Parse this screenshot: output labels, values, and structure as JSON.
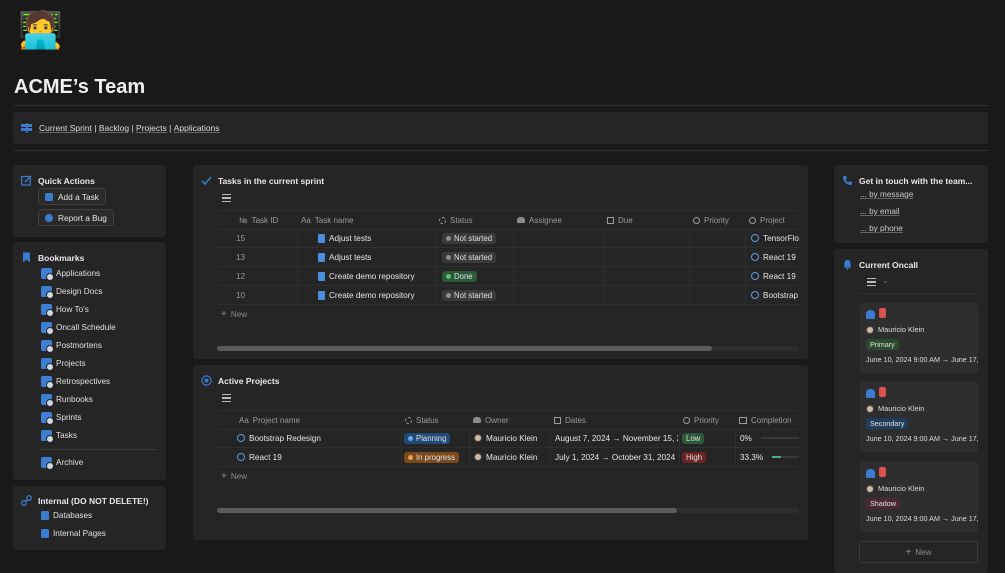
{
  "page": {
    "title": "ACME’s Team",
    "emoji": "🧑‍💻"
  },
  "nav": {
    "links": [
      "Current Sprint",
      "Backlog",
      "Projects",
      "Applications"
    ],
    "separator": " | "
  },
  "quick_actions": {
    "title": "Quick Actions",
    "add_task": "Add a Task",
    "report_bug": "Report a Bug"
  },
  "bookmarks": {
    "title": "Bookmarks",
    "items": [
      "Applications",
      "Design Docs",
      "How To's",
      "Oncall Schedule",
      "Postmortens",
      "Projects",
      "Retrospectives",
      "Runbooks",
      "Sprints",
      "Tasks"
    ],
    "archive": "Archive"
  },
  "internal": {
    "title": "Internal (DO NOT DELETE!)",
    "items": [
      "Databases",
      "Internal Pages"
    ]
  },
  "tasks": {
    "title": "Tasks in the current sprint",
    "columns": [
      "Task ID",
      "Task name",
      "Status",
      "Assignee",
      "Due",
      "Priority",
      "Project"
    ],
    "column_prefix": {
      "id": "№",
      "name": "Aa"
    },
    "rows": [
      {
        "id": "15",
        "name": "Adjust tests",
        "status": "Not started",
        "project": "TensorFlo"
      },
      {
        "id": "13",
        "name": "Adjust tests",
        "status": "Not started",
        "project": "React 19"
      },
      {
        "id": "12",
        "name": "Create demo repository",
        "status": "Done",
        "project": "React 19"
      },
      {
        "id": "10",
        "name": "Create demo repository",
        "status": "Not started",
        "project": "Bootstrap"
      }
    ],
    "new_label": "New",
    "scroll_fraction": 0.85
  },
  "projects": {
    "title": "Active Projects",
    "columns": [
      "Project name",
      "Status",
      "Owner",
      "Dates",
      "Priority",
      "Completion"
    ],
    "rows": [
      {
        "name": "Bootstrap Redesign",
        "status": "Planning",
        "owner": "Mauricio Klein",
        "dates": "August 7, 2024 → November 15, 2",
        "priority": "Low",
        "completion": "0%",
        "completion_value": 0
      },
      {
        "name": "React 19",
        "status": "In progress",
        "owner": "Mauricio Klein",
        "dates": "July 1, 2024 → October 31, 2024",
        "priority": "High",
        "completion": "33.3%",
        "completion_value": 0.333
      }
    ],
    "new_label": "New",
    "scroll_fraction": 0.79
  },
  "contact": {
    "title": "Get in touch with the team...",
    "links": [
      "... by message",
      "... by email",
      "... by phone"
    ]
  },
  "oncall": {
    "title": "Current Oncall",
    "entries": [
      {
        "name": "Mauricio Klein",
        "role": "Primary",
        "dates": "June 10, 2024 9:00 AM → June 17,"
      },
      {
        "name": "Mauricio Klein",
        "role": "Secondary",
        "dates": "June 10, 2024 9:00 AM → June 17,"
      },
      {
        "name": "Mauricio Klein",
        "role": "Shadow",
        "dates": "June 10, 2024 9:00 AM → June 17,"
      }
    ],
    "new_label": "New"
  },
  "colors": {
    "accent": "#3b7bd0",
    "primary_tag": "#2b4a2e",
    "secondary_tag": "#213d5c",
    "shadow_tag": "#4a2636",
    "done": "#2b5a3a",
    "planning": "#214a78",
    "in_progress": "#7a4a1c",
    "low": "#2a5a3a",
    "high": "#6a2424"
  }
}
